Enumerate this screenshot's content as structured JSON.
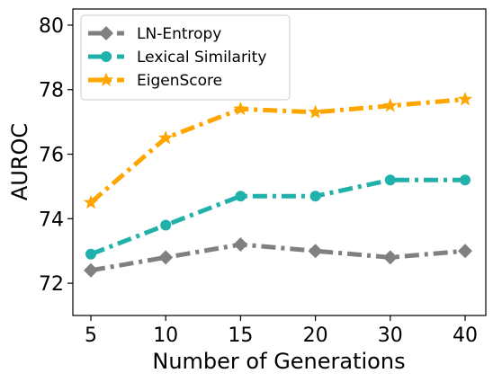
{
  "chart_data": {
    "type": "line",
    "xlabel": "Number of Generations",
    "ylabel": "AUROC",
    "categories": [
      "5",
      "10",
      "15",
      "20",
      "30",
      "40"
    ],
    "ylim": [
      71,
      80.5
    ],
    "yticks": [
      72,
      74,
      76,
      78,
      80
    ],
    "grid": false,
    "legend_position": "top-left",
    "series": [
      {
        "name": "LN-Entropy",
        "values": [
          72.4,
          72.8,
          73.2,
          73.0,
          72.8,
          73.0
        ],
        "color": "#808080",
        "marker": "diamond"
      },
      {
        "name": "Lexical Similarity",
        "values": [
          72.9,
          73.8,
          74.7,
          74.7,
          75.2,
          75.2
        ],
        "color": "#20b2aa",
        "marker": "circle"
      },
      {
        "name": "EigenScore",
        "values": [
          74.5,
          76.5,
          77.4,
          77.3,
          77.5,
          77.7
        ],
        "color": "#ffa500",
        "marker": "star"
      }
    ]
  }
}
